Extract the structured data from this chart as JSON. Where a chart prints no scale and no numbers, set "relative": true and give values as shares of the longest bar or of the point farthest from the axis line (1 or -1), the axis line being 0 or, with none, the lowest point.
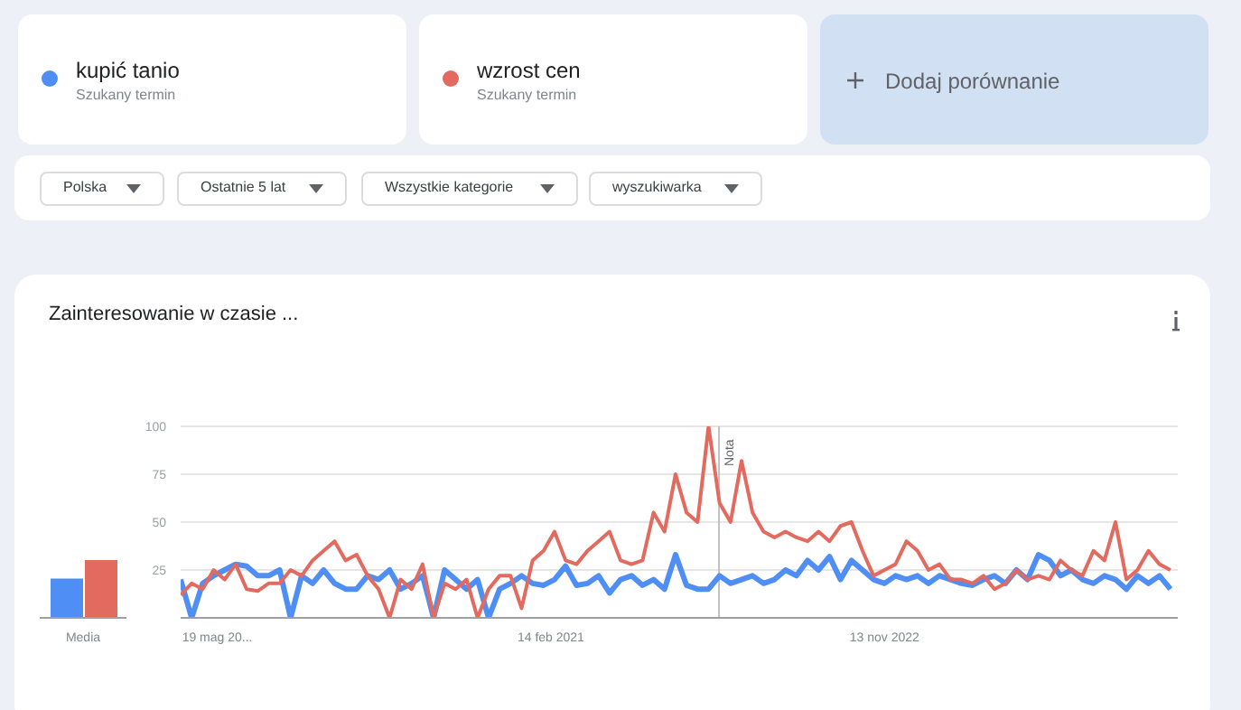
{
  "chart_data": [
    {
      "type": "bar",
      "categories": [
        "Media"
      ],
      "relative": true,
      "series": [
        {
          "color": "#4e8ef5",
          "values": [
            0.68
          ]
        },
        {
          "color": "#e26a5f",
          "values": [
            1
          ]
        }
      ]
    },
    {
      "type": "line",
      "title": "Zainteresowanie w czasie ...",
      "legend": "top left",
      "annotations": [
        "Szukany termin",
        "Szukany termin",
        "Dodaj porównanie",
        "Polska",
        "Ostatnie 5 lat",
        "Wszystkie kategorie",
        "wyszukiwarka"
      ],
      "x": [
        "2019-03-10",
        "2019-03-31",
        "2019-04-21",
        "2019-05-12",
        "2019-06-02",
        "2019-06-23",
        "2019-07-14",
        "2019-08-04",
        "2019-08-25",
        "2019-09-15",
        "2019-10-06",
        "2019-10-27",
        "2019-11-17",
        "2019-12-08",
        "2019-12-29",
        "2020-01-19",
        "2020-02-09",
        "2020-03-01",
        "2020-03-22",
        "2020-04-12",
        "2020-05-03",
        "2020-05-24",
        "2020-06-14",
        "2020-07-05",
        "2020-07-26",
        "2020-08-16",
        "2020-09-06",
        "2020-09-27",
        "2020-10-18",
        "2020-11-08",
        "2020-11-29",
        "2020-12-20",
        "2021-01-10",
        "2021-01-31",
        "2021-02-21",
        "2021-03-14",
        "2021-04-04",
        "2021-04-25",
        "2021-05-16",
        "2021-06-06",
        "2021-06-27",
        "2021-07-18",
        "2021-08-08",
        "2021-08-29",
        "2021-09-19",
        "2021-10-10",
        "2021-10-31",
        "2021-11-21",
        "2021-12-12",
        "2022-01-02",
        "2022-01-23",
        "2022-02-13",
        "2022-03-06",
        "2022-03-27",
        "2022-04-17",
        "2022-05-08",
        "2022-05-29",
        "2022-06-19",
        "2022-07-10",
        "2022-07-31",
        "2022-08-21",
        "2022-09-11",
        "2022-10-02",
        "2022-10-23",
        "2022-11-13",
        "2022-12-04",
        "2022-12-25",
        "2023-01-15",
        "2023-02-05",
        "2023-02-26",
        "2023-03-19",
        "2023-04-09",
        "2023-04-30",
        "2023-05-21",
        "2023-06-11",
        "2023-07-02",
        "2023-07-23",
        "2023-08-13",
        "2023-09-03",
        "2023-09-24",
        "2023-10-15",
        "2023-11-05",
        "2023-11-26",
        "2023-12-17",
        "2024-01-07",
        "2024-01-28",
        "2024-02-18",
        "2024-03-10",
        "2024-03-31",
        "2024-04-21",
        "2024-05-12"
      ],
      "series": [
        {
          "name": "kupić tanio",
          "color": "#4e8ef5",
          "values": [
            20,
            0,
            18,
            22,
            25,
            28,
            27,
            22,
            22,
            25,
            0,
            22,
            18,
            25,
            18,
            15,
            15,
            22,
            20,
            25,
            15,
            18,
            22,
            0,
            25,
            20,
            15,
            20,
            0,
            15,
            18,
            22,
            18,
            17,
            20,
            27,
            17,
            18,
            22,
            13,
            20,
            22,
            17,
            20,
            15,
            33,
            17,
            15,
            15,
            22,
            18,
            20,
            22,
            18,
            20,
            25,
            22,
            30,
            25,
            32,
            20,
            30,
            25,
            20,
            18,
            22,
            20,
            22,
            18,
            22,
            20,
            18,
            17,
            20,
            22,
            18,
            25,
            20,
            33,
            30,
            22,
            25,
            20,
            18,
            22,
            20,
            15,
            22,
            18,
            22,
            15
          ]
        },
        {
          "name": "wzrost cen",
          "color": "#e26a5f",
          "values": [
            12,
            18,
            15,
            25,
            20,
            28,
            15,
            14,
            18,
            18,
            25,
            22,
            30,
            35,
            40,
            30,
            33,
            22,
            15,
            0,
            20,
            15,
            28,
            0,
            18,
            15,
            20,
            0,
            15,
            22,
            22,
            5,
            30,
            35,
            45,
            30,
            28,
            35,
            40,
            45,
            30,
            28,
            30,
            55,
            45,
            75,
            55,
            50,
            100,
            60,
            50,
            82,
            55,
            45,
            42,
            45,
            42,
            40,
            45,
            40,
            48,
            50,
            35,
            22,
            25,
            28,
            40,
            35,
            25,
            28,
            20,
            20,
            18,
            22,
            15,
            18,
            25,
            20,
            22,
            20,
            30,
            25,
            22,
            35,
            30,
            50,
            20,
            25,
            35,
            28,
            25
          ]
        }
      ],
      "xlim": [
        "2019-03-10",
        "2024-05-26"
      ],
      "xticks": [
        {
          "value": "2019-05-19",
          "label": "19 mag 20..."
        },
        {
          "value": "2021-02-14",
          "label": "14 feb 2021"
        },
        {
          "value": "2022-11-13",
          "label": "13 nov 2022"
        }
      ],
      "ylim": [
        0,
        100
      ],
      "yticks": [
        {
          "value": 0,
          "label": null
        },
        25,
        50,
        75,
        100
      ],
      "grid": "y",
      "ref_lines": [
        {
          "axis": "x",
          "value": "2022-01-01",
          "label": "Nota"
        }
      ]
    }
  ]
}
